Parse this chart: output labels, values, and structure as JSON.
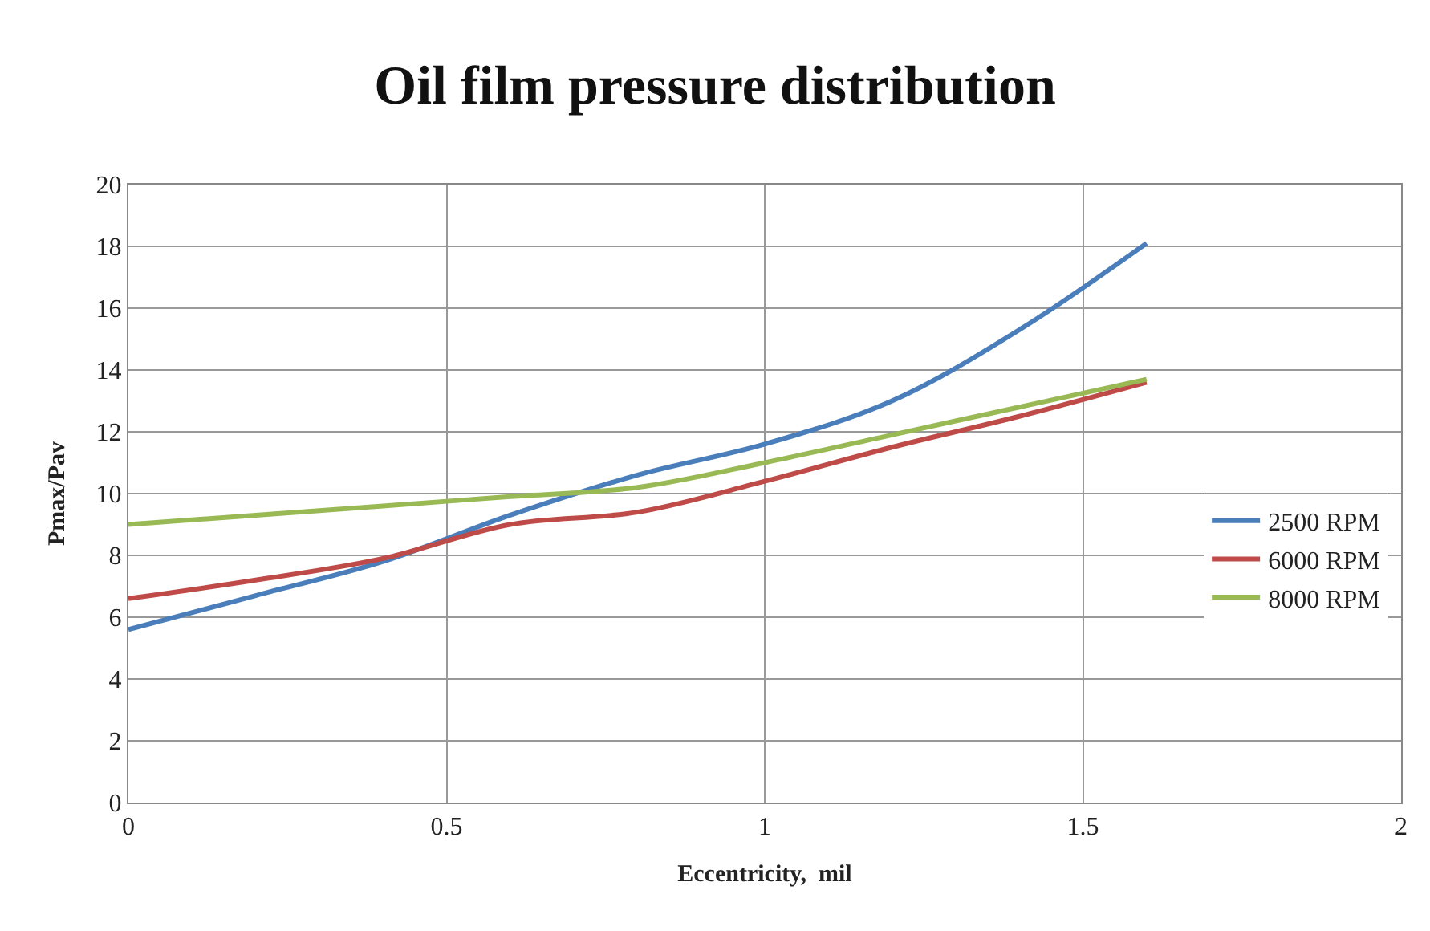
{
  "chart_data": {
    "type": "line",
    "title": "Oil film pressure distribution",
    "xlabel": "Eccentricity,  mil",
    "ylabel": "Pmax/Pav",
    "x": [
      0,
      0.2,
      0.4,
      0.6,
      0.8,
      1.0,
      1.2,
      1.4,
      1.6
    ],
    "series": [
      {
        "name": "2500 RPM",
        "color": "#4a7ebb",
        "values": [
          5.6,
          6.7,
          7.8,
          9.3,
          10.6,
          11.6,
          13.0,
          15.3,
          18.1
        ]
      },
      {
        "name": "6000 RPM",
        "color": "#be4b48",
        "values": [
          6.6,
          7.2,
          7.9,
          9.0,
          9.4,
          10.4,
          11.5,
          12.5,
          13.6
        ]
      },
      {
        "name": "8000 RPM",
        "color": "#98b954",
        "values": [
          9.0,
          9.3,
          9.6,
          9.9,
          10.2,
          11.0,
          11.9,
          12.8,
          13.7
        ]
      }
    ],
    "xlim": [
      0,
      2
    ],
    "xticks": [
      0,
      0.5,
      1,
      1.5,
      2
    ],
    "ylim": [
      0,
      20
    ],
    "yticks": [
      0,
      2,
      4,
      6,
      8,
      10,
      12,
      14,
      16,
      18,
      20
    ],
    "grid": true,
    "legend": "right",
    "marker": "none",
    "line_style": "solid"
  }
}
